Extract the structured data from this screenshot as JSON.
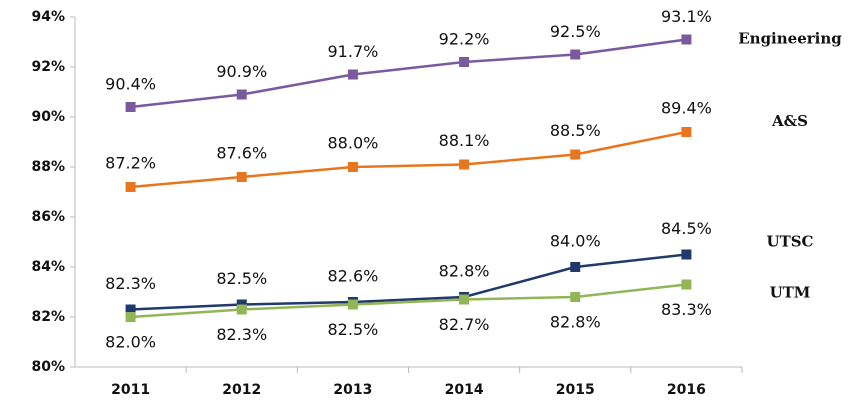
{
  "chart_data": {
    "type": "line",
    "categories": [
      "2011",
      "2012",
      "2013",
      "2014",
      "2015",
      "2016"
    ],
    "series": [
      {
        "name": "Engineering",
        "color": "#7a5a9e",
        "values": [
          90.4,
          90.9,
          91.7,
          92.2,
          92.5,
          93.1
        ],
        "value_labels": [
          "90.4%",
          "90.9%",
          "91.7%",
          "92.2%",
          "92.5%",
          "93.1%"
        ]
      },
      {
        "name": "A&S",
        "color": "#e8761e",
        "values": [
          87.2,
          87.6,
          88.0,
          88.1,
          88.5,
          89.4
        ],
        "value_labels": [
          "87.2%",
          "87.6%",
          "88.0%",
          "88.1%",
          "88.5%",
          "89.4%"
        ]
      },
      {
        "name": "UTSC",
        "color": "#1f3a6b",
        "values": [
          82.3,
          82.5,
          82.6,
          82.8,
          84.0,
          84.5
        ],
        "value_labels": [
          "82.3%",
          "82.5%",
          "82.6%",
          "82.8%",
          "84.0%",
          "84.5%"
        ]
      },
      {
        "name": "UTM",
        "color": "#92b656",
        "values": [
          82.0,
          82.3,
          82.5,
          82.7,
          82.8,
          83.3
        ],
        "value_labels": [
          "82.0%",
          "82.3%",
          "82.5%",
          "82.7%",
          "82.8%",
          "83.3%"
        ]
      }
    ],
    "ylim": [
      80,
      94
    ],
    "yticks": [
      {
        "value": 80,
        "label": "80%"
      },
      {
        "value": 82,
        "label": "82%"
      },
      {
        "value": 84,
        "label": "84%"
      },
      {
        "value": 86,
        "label": "86%"
      },
      {
        "value": 88,
        "label": "88%"
      },
      {
        "value": 90,
        "label": "90%"
      },
      {
        "value": 92,
        "label": "92%"
      },
      {
        "value": 94,
        "label": "94%"
      }
    ],
    "grid": false
  }
}
